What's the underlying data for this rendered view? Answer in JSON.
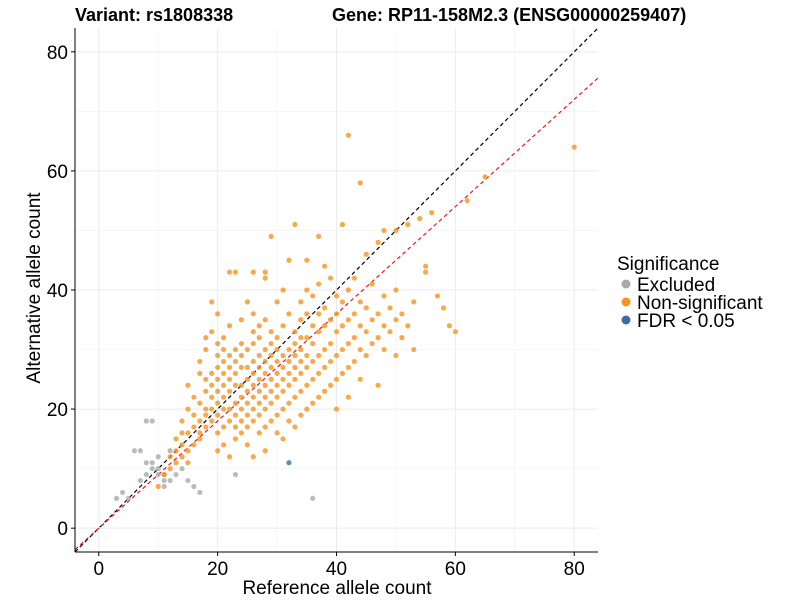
{
  "chart_data": {
    "type": "scatter",
    "title_left": "Variant: rs1808338",
    "title_right": "Gene: RP11-158M2.3 (ENSG00000259407)",
    "xlabel": "Reference allele count",
    "ylabel": "Alternative allele count",
    "xlim": [
      -4,
      84
    ],
    "ylim": [
      -4,
      84
    ],
    "xticks": [
      0,
      20,
      40,
      60,
      80
    ],
    "yticks": [
      0,
      20,
      40,
      60,
      80
    ],
    "grid": true,
    "legend": {
      "title": "Significance",
      "position": "right",
      "entries": [
        {
          "label": "Excluded",
          "color": "#aaaaaa"
        },
        {
          "label": "Non-significant",
          "color": "#f7941d"
        },
        {
          "label": "FDR < 0.05",
          "color": "#3a6ea5"
        }
      ]
    },
    "reference_lines": [
      {
        "name": "identity-line",
        "slope": 1.0,
        "intercept": 0,
        "color": "#000000",
        "dash": true
      },
      {
        "name": "fitted-line",
        "slope": 0.9,
        "intercept": 0,
        "color": "#e8191b",
        "dash": true
      }
    ],
    "series": [
      {
        "name": "Excluded",
        "color": "#aaaaaa",
        "points": [
          [
            3,
            5
          ],
          [
            4,
            6
          ],
          [
            5,
            5
          ],
          [
            6,
            13
          ],
          [
            7,
            13
          ],
          [
            7,
            8
          ],
          [
            8,
            18
          ],
          [
            8,
            9
          ],
          [
            8,
            11
          ],
          [
            9,
            18
          ],
          [
            9,
            10
          ],
          [
            9,
            11
          ],
          [
            10,
            12
          ],
          [
            10,
            9
          ],
          [
            10,
            10
          ],
          [
            11,
            8
          ],
          [
            11,
            7
          ],
          [
            11,
            9
          ],
          [
            12,
            13
          ],
          [
            12,
            8
          ],
          [
            13,
            9
          ],
          [
            14,
            10
          ],
          [
            15,
            8
          ],
          [
            16,
            7
          ],
          [
            17,
            6
          ],
          [
            23,
            9
          ],
          [
            36,
            5
          ]
        ]
      },
      {
        "name": "Non-significant",
        "color": "#f7941d",
        "points": [
          [
            10,
            7
          ],
          [
            11,
            9
          ],
          [
            12,
            10
          ],
          [
            12,
            12
          ],
          [
            13,
            11
          ],
          [
            13,
            13
          ],
          [
            13,
            15
          ],
          [
            14,
            12
          ],
          [
            14,
            14
          ],
          [
            14,
            16
          ],
          [
            14,
            18
          ],
          [
            15,
            11
          ],
          [
            15,
            13
          ],
          [
            15,
            16
          ],
          [
            15,
            20
          ],
          [
            15,
            24
          ],
          [
            16,
            14
          ],
          [
            16,
            17
          ],
          [
            16,
            19
          ],
          [
            16,
            22
          ],
          [
            17,
            15
          ],
          [
            17,
            16
          ],
          [
            17,
            18
          ],
          [
            17,
            21
          ],
          [
            17,
            26
          ],
          [
            17,
            28
          ],
          [
            18,
            17
          ],
          [
            18,
            19
          ],
          [
            18,
            20
          ],
          [
            18,
            23
          ],
          [
            18,
            25
          ],
          [
            18,
            30
          ],
          [
            18,
            32
          ],
          [
            19,
            18
          ],
          [
            19,
            20
          ],
          [
            19,
            22
          ],
          [
            19,
            24
          ],
          [
            19,
            26
          ],
          [
            19,
            33
          ],
          [
            19,
            38
          ],
          [
            20,
            13
          ],
          [
            20,
            16
          ],
          [
            20,
            19
          ],
          [
            20,
            21
          ],
          [
            20,
            23
          ],
          [
            20,
            25
          ],
          [
            20,
            27
          ],
          [
            20,
            29
          ],
          [
            20,
            31
          ],
          [
            20,
            36
          ],
          [
            21,
            14
          ],
          [
            21,
            17
          ],
          [
            21,
            20
          ],
          [
            21,
            22
          ],
          [
            21,
            24
          ],
          [
            21,
            26
          ],
          [
            21,
            28
          ],
          [
            21,
            30
          ],
          [
            21,
            32
          ],
          [
            22,
            12
          ],
          [
            22,
            18
          ],
          [
            22,
            20
          ],
          [
            22,
            23
          ],
          [
            22,
            25
          ],
          [
            22,
            27
          ],
          [
            22,
            29
          ],
          [
            22,
            34
          ],
          [
            22,
            43
          ],
          [
            23,
            15
          ],
          [
            23,
            17
          ],
          [
            23,
            19
          ],
          [
            23,
            21
          ],
          [
            23,
            24
          ],
          [
            23,
            26
          ],
          [
            23,
            28
          ],
          [
            23,
            30
          ],
          [
            23,
            43
          ],
          [
            24,
            16
          ],
          [
            24,
            18
          ],
          [
            24,
            20
          ],
          [
            24,
            22
          ],
          [
            24,
            24
          ],
          [
            24,
            27
          ],
          [
            24,
            29
          ],
          [
            24,
            31
          ],
          [
            24,
            35
          ],
          [
            25,
            14
          ],
          [
            25,
            17
          ],
          [
            25,
            19
          ],
          [
            25,
            21
          ],
          [
            25,
            23
          ],
          [
            25,
            25
          ],
          [
            25,
            27
          ],
          [
            25,
            30
          ],
          [
            25,
            38
          ],
          [
            26,
            12
          ],
          [
            26,
            18
          ],
          [
            26,
            20
          ],
          [
            26,
            22
          ],
          [
            26,
            24
          ],
          [
            26,
            26
          ],
          [
            26,
            28
          ],
          [
            26,
            31
          ],
          [
            26,
            33
          ],
          [
            26,
            36
          ],
          [
            26,
            43
          ],
          [
            27,
            16
          ],
          [
            27,
            19
          ],
          [
            27,
            21
          ],
          [
            27,
            23
          ],
          [
            27,
            25
          ],
          [
            27,
            27
          ],
          [
            27,
            29
          ],
          [
            27,
            32
          ],
          [
            27,
            34
          ],
          [
            28,
            13
          ],
          [
            28,
            17
          ],
          [
            28,
            20
          ],
          [
            28,
            22
          ],
          [
            28,
            24
          ],
          [
            28,
            26
          ],
          [
            28,
            28
          ],
          [
            28,
            30
          ],
          [
            28,
            35
          ],
          [
            28,
            42
          ],
          [
            28,
            43
          ],
          [
            29,
            18
          ],
          [
            29,
            21
          ],
          [
            29,
            23
          ],
          [
            29,
            25
          ],
          [
            29,
            27
          ],
          [
            29,
            29
          ],
          [
            29,
            31
          ],
          [
            29,
            33
          ],
          [
            29,
            49
          ],
          [
            30,
            16
          ],
          [
            30,
            19
          ],
          [
            30,
            22
          ],
          [
            30,
            24
          ],
          [
            30,
            26
          ],
          [
            30,
            28
          ],
          [
            30,
            30
          ],
          [
            30,
            32
          ],
          [
            30,
            38
          ],
          [
            31,
            15
          ],
          [
            31,
            20
          ],
          [
            31,
            23
          ],
          [
            31,
            25
          ],
          [
            31,
            27
          ],
          [
            31,
            29
          ],
          [
            31,
            34
          ],
          [
            31,
            40
          ],
          [
            32,
            18
          ],
          [
            32,
            21
          ],
          [
            32,
            24
          ],
          [
            32,
            26
          ],
          [
            32,
            28
          ],
          [
            32,
            30
          ],
          [
            32,
            36
          ],
          [
            32,
            45
          ],
          [
            33,
            17
          ],
          [
            33,
            22
          ],
          [
            33,
            25
          ],
          [
            33,
            27
          ],
          [
            33,
            29
          ],
          [
            33,
            31
          ],
          [
            33,
            33
          ],
          [
            33,
            51
          ],
          [
            34,
            19
          ],
          [
            34,
            23
          ],
          [
            34,
            26
          ],
          [
            34,
            28
          ],
          [
            34,
            30
          ],
          [
            34,
            32
          ],
          [
            34,
            35
          ],
          [
            34,
            38
          ],
          [
            35,
            20
          ],
          [
            35,
            24
          ],
          [
            35,
            27
          ],
          [
            35,
            29
          ],
          [
            35,
            32
          ],
          [
            35,
            36
          ],
          [
            35,
            40
          ],
          [
            35,
            45
          ],
          [
            36,
            21
          ],
          [
            36,
            25
          ],
          [
            36,
            28
          ],
          [
            36,
            31
          ],
          [
            36,
            34
          ],
          [
            36,
            39
          ],
          [
            37,
            22
          ],
          [
            37,
            26
          ],
          [
            37,
            29
          ],
          [
            37,
            33
          ],
          [
            37,
            36
          ],
          [
            37,
            41
          ],
          [
            37,
            49
          ],
          [
            38,
            23
          ],
          [
            38,
            27
          ],
          [
            38,
            30
          ],
          [
            38,
            34
          ],
          [
            38,
            37
          ],
          [
            38,
            44
          ],
          [
            39,
            24
          ],
          [
            39,
            28
          ],
          [
            39,
            31
          ],
          [
            39,
            35
          ],
          [
            39,
            42
          ],
          [
            40,
            20
          ],
          [
            40,
            25
          ],
          [
            40,
            29
          ],
          [
            40,
            33
          ],
          [
            40,
            36
          ],
          [
            40,
            39
          ],
          [
            41,
            26
          ],
          [
            41,
            30
          ],
          [
            41,
            34
          ],
          [
            41,
            38
          ],
          [
            41,
            51
          ],
          [
            42,
            22
          ],
          [
            42,
            27
          ],
          [
            42,
            31
          ],
          [
            42,
            35
          ],
          [
            42,
            40
          ],
          [
            42,
            66
          ],
          [
            43,
            28
          ],
          [
            43,
            32
          ],
          [
            43,
            36
          ],
          [
            43,
            42
          ],
          [
            44,
            25
          ],
          [
            44,
            30
          ],
          [
            44,
            34
          ],
          [
            44,
            38
          ],
          [
            44,
            58
          ],
          [
            45,
            29
          ],
          [
            45,
            33
          ],
          [
            45,
            37
          ],
          [
            45,
            46
          ],
          [
            46,
            31
          ],
          [
            46,
            35
          ],
          [
            46,
            41
          ],
          [
            47,
            24
          ],
          [
            47,
            32
          ],
          [
            47,
            36
          ],
          [
            47,
            48
          ],
          [
            48,
            30
          ],
          [
            48,
            34
          ],
          [
            48,
            39
          ],
          [
            48,
            50
          ],
          [
            49,
            33
          ],
          [
            49,
            37
          ],
          [
            50,
            29
          ],
          [
            50,
            35
          ],
          [
            50,
            40
          ],
          [
            50,
            50
          ],
          [
            51,
            32
          ],
          [
            51,
            36
          ],
          [
            52,
            34
          ],
          [
            52,
            51
          ],
          [
            53,
            30
          ],
          [
            53,
            38
          ],
          [
            54,
            52
          ],
          [
            55,
            43
          ],
          [
            55,
            44
          ],
          [
            56,
            53
          ],
          [
            57,
            39
          ],
          [
            58,
            37
          ],
          [
            59,
            34
          ],
          [
            60,
            33
          ],
          [
            62,
            55
          ],
          [
            65,
            59
          ],
          [
            80,
            64
          ]
        ]
      },
      {
        "name": "FDR < 0.05",
        "color": "#3a6ea5",
        "points": [
          [
            32,
            11
          ]
        ]
      }
    ]
  }
}
